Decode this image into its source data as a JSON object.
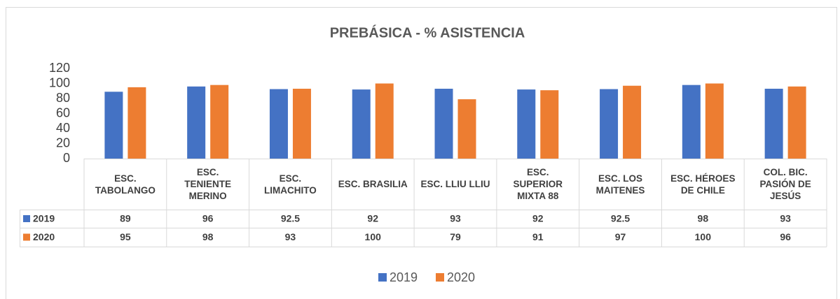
{
  "chart_data": {
    "type": "bar",
    "title": "PREBÁSICA - % ASISTENCIA",
    "categories": [
      "ESC. TABOLANGO",
      "ESC. TENIENTE MERINO",
      "ESC. LIMACHITO",
      "ESC. BRASILIA",
      "ESC. LLIU LLIU",
      "ESC. SUPERIOR MIXTA 88",
      "ESC. LOS MAITENES",
      "ESC. HÉROES DE CHILE",
      "COL. BIC. PASIÓN DE JESÚS"
    ],
    "series": [
      {
        "name": "2019",
        "color": "#4472c4",
        "values": [
          89,
          96,
          92.5,
          92,
          93,
          92,
          92.5,
          98,
          93
        ]
      },
      {
        "name": "2020",
        "color": "#ed7d31",
        "values": [
          95,
          98,
          93,
          100,
          79,
          91,
          97,
          100,
          96
        ]
      }
    ],
    "ylim": [
      0,
      120
    ],
    "yticks": [
      0,
      20,
      40,
      60,
      80,
      100,
      120
    ],
    "grid": false,
    "legend": "bottom"
  }
}
